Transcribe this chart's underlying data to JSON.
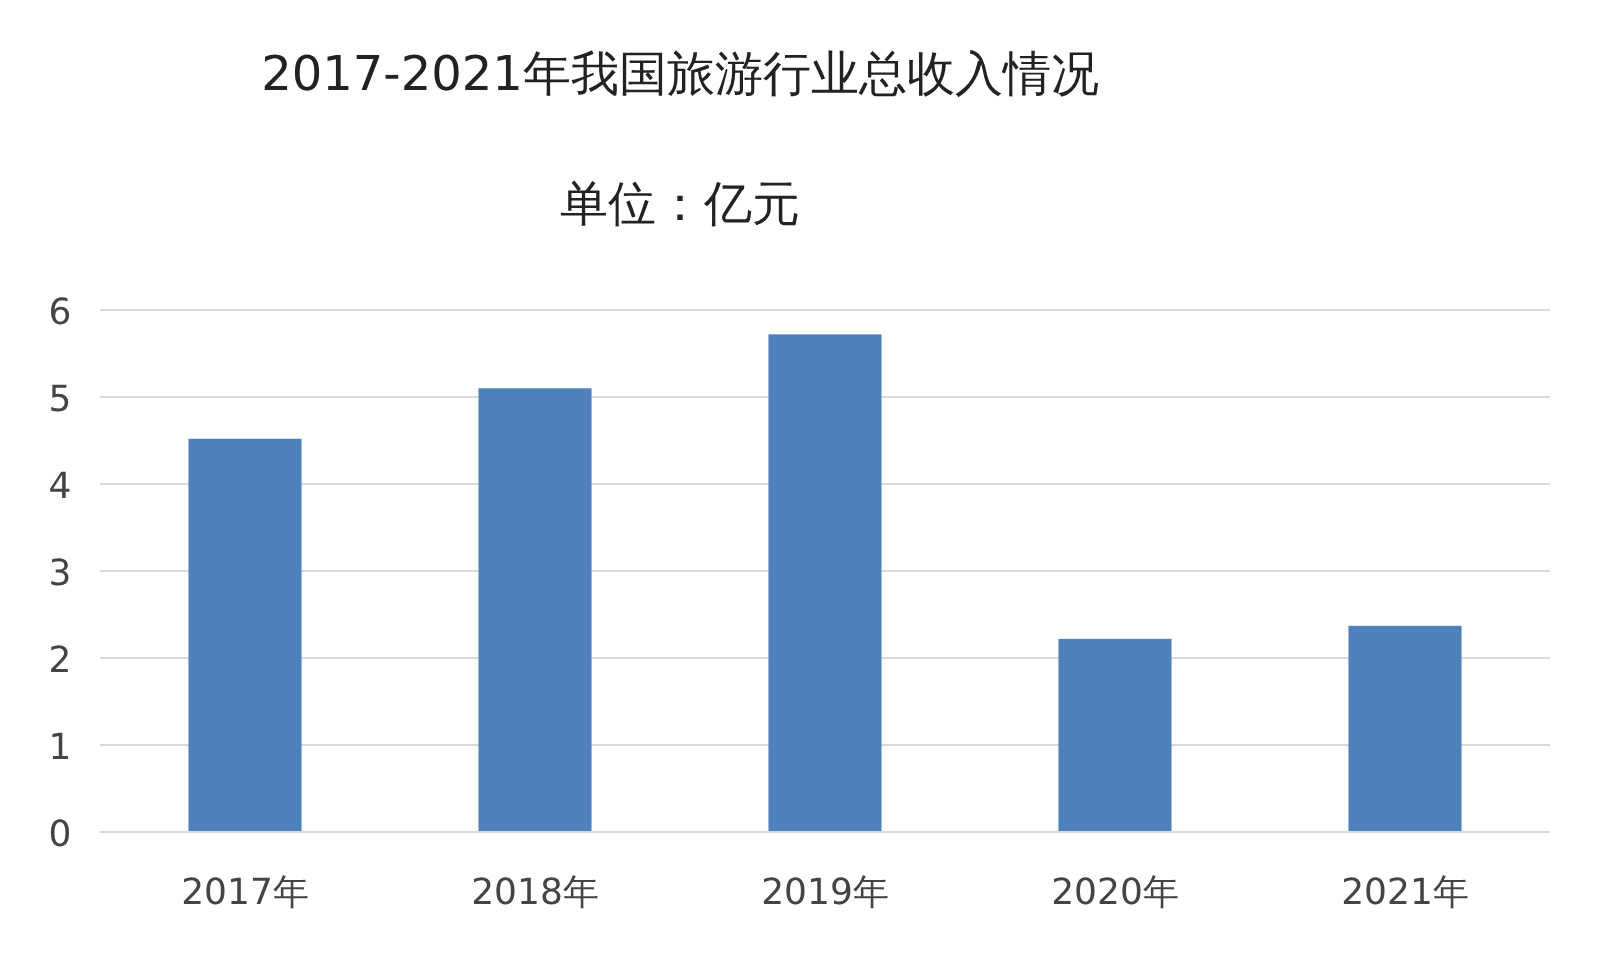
{
  "chart_data": {
    "type": "bar",
    "title": "2017-2021年我国旅游行业总收入情况",
    "subtitle": "单位：亿元",
    "categories": [
      "2017年",
      "2018年",
      "2019年",
      "2020年",
      "2021年"
    ],
    "values": [
      4.52,
      5.1,
      5.72,
      2.22,
      2.37
    ],
    "color": "#4f81bd",
    "ylim": [
      0,
      6
    ],
    "yticks": [
      0,
      1,
      2,
      3,
      4,
      5,
      6
    ],
    "grid": "y"
  }
}
